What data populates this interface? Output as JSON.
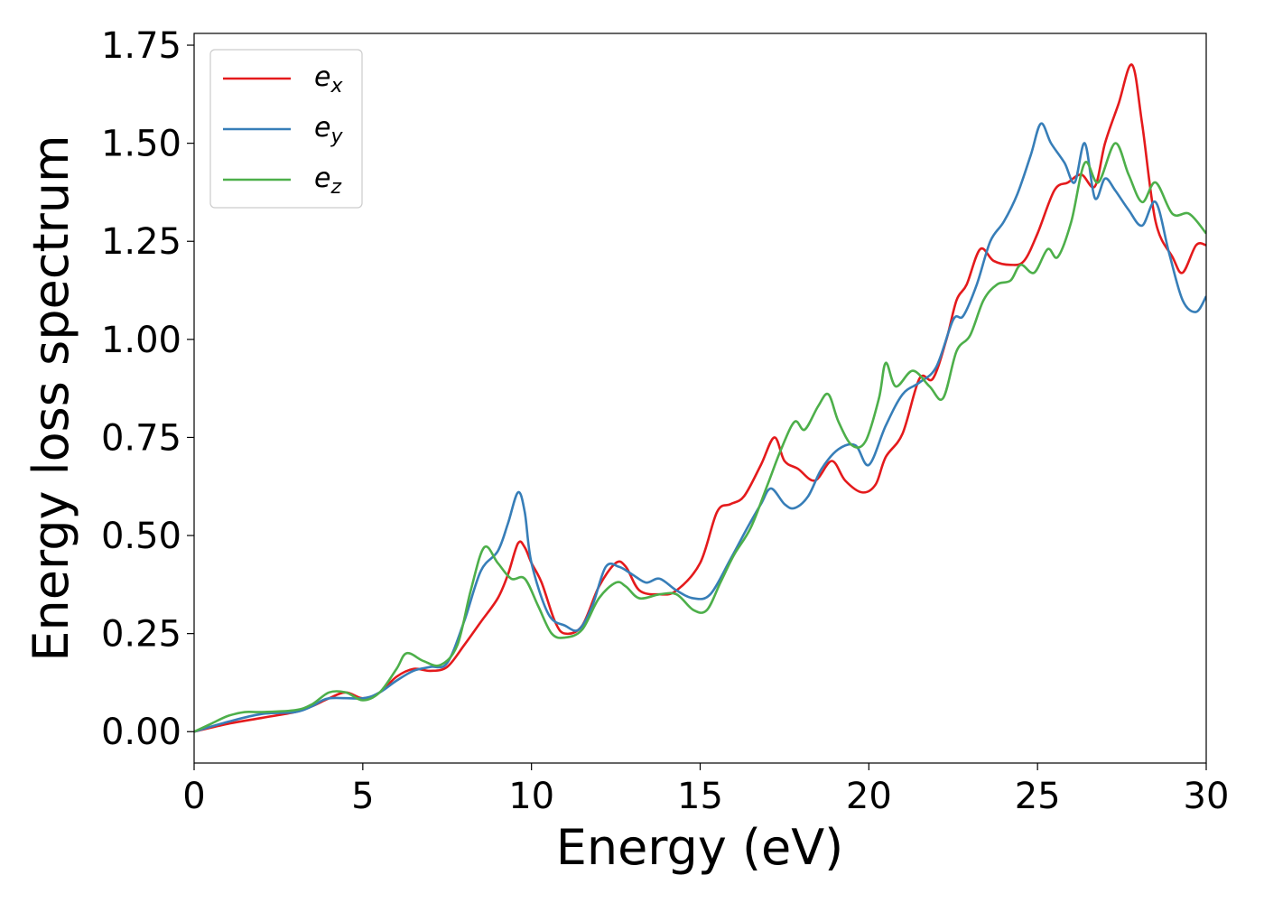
{
  "chart_data": {
    "type": "line",
    "xlabel": "Energy (eV)",
    "ylabel": "Energy loss spectrum",
    "xlim": [
      0,
      30
    ],
    "ylim": [
      -0.08,
      1.78
    ],
    "x_ticks": [
      "0",
      "5",
      "10",
      "15",
      "20",
      "25",
      "30"
    ],
    "y_ticks": [
      "0.00",
      "0.25",
      "0.50",
      "0.75",
      "1.00",
      "1.25",
      "1.50",
      "1.75"
    ],
    "grid": false,
    "legend_position": "top-left",
    "series": [
      {
        "name": "e",
        "subscript": "x",
        "color": "#e41a1c",
        "points": [
          [
            0,
            0
          ],
          [
            1,
            0.02
          ],
          [
            2,
            0.035
          ],
          [
            3,
            0.05
          ],
          [
            3.5,
            0.065
          ],
          [
            4,
            0.085
          ],
          [
            4.5,
            0.1
          ],
          [
            5,
            0.085
          ],
          [
            5.5,
            0.1
          ],
          [
            6,
            0.14
          ],
          [
            6.5,
            0.16
          ],
          [
            7,
            0.155
          ],
          [
            7.5,
            0.165
          ],
          [
            8,
            0.22
          ],
          [
            8.5,
            0.28
          ],
          [
            9,
            0.34
          ],
          [
            9.3,
            0.4
          ],
          [
            9.6,
            0.48
          ],
          [
            9.8,
            0.47
          ],
          [
            10,
            0.43
          ],
          [
            10.3,
            0.38
          ],
          [
            10.7,
            0.28
          ],
          [
            11,
            0.25
          ],
          [
            11.5,
            0.27
          ],
          [
            12,
            0.37
          ],
          [
            12.5,
            0.43
          ],
          [
            12.8,
            0.42
          ],
          [
            13.2,
            0.36
          ],
          [
            13.8,
            0.35
          ],
          [
            14.3,
            0.36
          ],
          [
            15,
            0.43
          ],
          [
            15.5,
            0.56
          ],
          [
            15.9,
            0.58
          ],
          [
            16.3,
            0.6
          ],
          [
            16.8,
            0.68
          ],
          [
            17.2,
            0.75
          ],
          [
            17.5,
            0.69
          ],
          [
            17.9,
            0.67
          ],
          [
            18.4,
            0.64
          ],
          [
            18.9,
            0.69
          ],
          [
            19.3,
            0.64
          ],
          [
            19.8,
            0.61
          ],
          [
            20.2,
            0.63
          ],
          [
            20.5,
            0.7
          ],
          [
            21,
            0.76
          ],
          [
            21.5,
            0.9
          ],
          [
            21.9,
            0.9
          ],
          [
            22.3,
            1.0
          ],
          [
            22.6,
            1.1
          ],
          [
            22.9,
            1.14
          ],
          [
            23.3,
            1.23
          ],
          [
            23.7,
            1.2
          ],
          [
            24.2,
            1.19
          ],
          [
            24.6,
            1.2
          ],
          [
            25,
            1.27
          ],
          [
            25.5,
            1.38
          ],
          [
            25.9,
            1.4
          ],
          [
            26.3,
            1.42
          ],
          [
            26.7,
            1.39
          ],
          [
            27,
            1.5
          ],
          [
            27.4,
            1.6
          ],
          [
            27.8,
            1.7
          ],
          [
            28.1,
            1.55
          ],
          [
            28.5,
            1.3
          ],
          [
            29,
            1.21
          ],
          [
            29.3,
            1.17
          ],
          [
            29.7,
            1.24
          ],
          [
            30,
            1.24
          ]
        ]
      },
      {
        "name": "e",
        "subscript": "y",
        "color": "#377eb8",
        "points": [
          [
            0,
            0
          ],
          [
            1,
            0.025
          ],
          [
            2,
            0.045
          ],
          [
            3,
            0.05
          ],
          [
            3.5,
            0.065
          ],
          [
            4,
            0.085
          ],
          [
            5,
            0.085
          ],
          [
            5.5,
            0.1
          ],
          [
            6,
            0.13
          ],
          [
            6.5,
            0.155
          ],
          [
            7,
            0.165
          ],
          [
            7.5,
            0.175
          ],
          [
            8,
            0.28
          ],
          [
            8.5,
            0.41
          ],
          [
            9,
            0.46
          ],
          [
            9.3,
            0.53
          ],
          [
            9.6,
            0.61
          ],
          [
            9.8,
            0.56
          ],
          [
            10,
            0.43
          ],
          [
            10.5,
            0.3
          ],
          [
            11,
            0.27
          ],
          [
            11.4,
            0.26
          ],
          [
            11.8,
            0.32
          ],
          [
            12.2,
            0.42
          ],
          [
            12.6,
            0.42
          ],
          [
            13,
            0.4
          ],
          [
            13.4,
            0.38
          ],
          [
            13.8,
            0.39
          ],
          [
            14.3,
            0.36
          ],
          [
            14.8,
            0.34
          ],
          [
            15.3,
            0.35
          ],
          [
            15.9,
            0.44
          ],
          [
            16.4,
            0.52
          ],
          [
            16.8,
            0.58
          ],
          [
            17.1,
            0.62
          ],
          [
            17.5,
            0.58
          ],
          [
            17.8,
            0.57
          ],
          [
            18.2,
            0.6
          ],
          [
            18.6,
            0.67
          ],
          [
            19.1,
            0.72
          ],
          [
            19.6,
            0.73
          ],
          [
            20,
            0.68
          ],
          [
            20.5,
            0.78
          ],
          [
            21,
            0.86
          ],
          [
            21.5,
            0.89
          ],
          [
            22,
            0.93
          ],
          [
            22.5,
            1.05
          ],
          [
            22.8,
            1.06
          ],
          [
            23.2,
            1.14
          ],
          [
            23.6,
            1.25
          ],
          [
            24,
            1.3
          ],
          [
            24.4,
            1.37
          ],
          [
            24.8,
            1.47
          ],
          [
            25.1,
            1.55
          ],
          [
            25.4,
            1.5
          ],
          [
            25.8,
            1.45
          ],
          [
            26.1,
            1.4
          ],
          [
            26.4,
            1.5
          ],
          [
            26.7,
            1.36
          ],
          [
            27,
            1.41
          ],
          [
            27.3,
            1.38
          ],
          [
            27.7,
            1.33
          ],
          [
            28.1,
            1.29
          ],
          [
            28.5,
            1.35
          ],
          [
            28.9,
            1.22
          ],
          [
            29.3,
            1.1
          ],
          [
            29.7,
            1.07
          ],
          [
            30,
            1.11
          ]
        ]
      },
      {
        "name": "e",
        "subscript": "z",
        "color": "#4daf4a",
        "points": [
          [
            0,
            0
          ],
          [
            0.5,
            0.02
          ],
          [
            1,
            0.04
          ],
          [
            1.5,
            0.05
          ],
          [
            2,
            0.05
          ],
          [
            3,
            0.055
          ],
          [
            3.5,
            0.07
          ],
          [
            4,
            0.1
          ],
          [
            4.5,
            0.1
          ],
          [
            5,
            0.08
          ],
          [
            5.5,
            0.1
          ],
          [
            6,
            0.16
          ],
          [
            6.3,
            0.2
          ],
          [
            6.8,
            0.18
          ],
          [
            7.3,
            0.17
          ],
          [
            7.8,
            0.22
          ],
          [
            8.2,
            0.36
          ],
          [
            8.6,
            0.47
          ],
          [
            9,
            0.43
          ],
          [
            9.4,
            0.39
          ],
          [
            9.8,
            0.39
          ],
          [
            10.2,
            0.32
          ],
          [
            10.6,
            0.25
          ],
          [
            11,
            0.24
          ],
          [
            11.5,
            0.26
          ],
          [
            12,
            0.34
          ],
          [
            12.5,
            0.38
          ],
          [
            12.8,
            0.37
          ],
          [
            13.2,
            0.34
          ],
          [
            13.8,
            0.35
          ],
          [
            14.3,
            0.35
          ],
          [
            14.8,
            0.31
          ],
          [
            15.2,
            0.31
          ],
          [
            15.6,
            0.38
          ],
          [
            16,
            0.45
          ],
          [
            16.5,
            0.52
          ],
          [
            17,
            0.63
          ],
          [
            17.4,
            0.72
          ],
          [
            17.8,
            0.79
          ],
          [
            18.1,
            0.77
          ],
          [
            18.5,
            0.83
          ],
          [
            18.8,
            0.86
          ],
          [
            19.1,
            0.79
          ],
          [
            19.5,
            0.73
          ],
          [
            19.9,
            0.74
          ],
          [
            20.3,
            0.85
          ],
          [
            20.5,
            0.94
          ],
          [
            20.8,
            0.88
          ],
          [
            21.3,
            0.92
          ],
          [
            21.8,
            0.88
          ],
          [
            22.2,
            0.85
          ],
          [
            22.6,
            0.97
          ],
          [
            23,
            1.01
          ],
          [
            23.4,
            1.1
          ],
          [
            23.8,
            1.14
          ],
          [
            24.2,
            1.15
          ],
          [
            24.5,
            1.19
          ],
          [
            24.9,
            1.17
          ],
          [
            25.3,
            1.23
          ],
          [
            25.6,
            1.21
          ],
          [
            26,
            1.3
          ],
          [
            26.4,
            1.45
          ],
          [
            26.8,
            1.4
          ],
          [
            27.3,
            1.5
          ],
          [
            27.7,
            1.42
          ],
          [
            28.1,
            1.35
          ],
          [
            28.5,
            1.4
          ],
          [
            29,
            1.32
          ],
          [
            29.5,
            1.32
          ],
          [
            30,
            1.27
          ]
        ]
      }
    ]
  }
}
